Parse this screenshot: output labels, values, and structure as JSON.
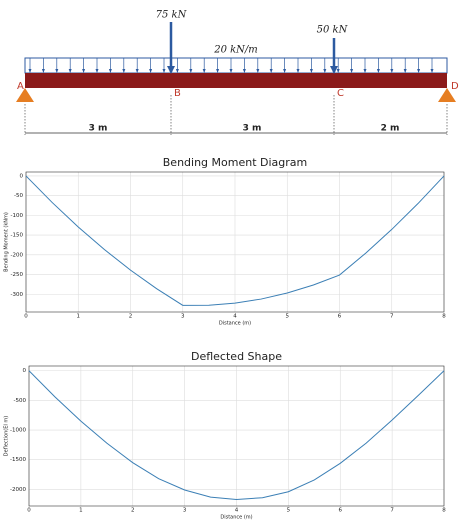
{
  "beam": {
    "loads": [
      "75 kN",
      "50 kN"
    ],
    "distributed_load": "20 kN/m",
    "points": [
      "A",
      "B",
      "C",
      "D"
    ],
    "spans": [
      "3 m",
      "3 m",
      "2 m"
    ]
  },
  "chart_data": [
    {
      "type": "line",
      "title": "Bending Moment Diagram",
      "x_label": "Distance (m)",
      "y_label": "Bending Moment (kNm)",
      "x": [
        0,
        0.5,
        1,
        1.5,
        2,
        2.5,
        3,
        3.5,
        4,
        4.5,
        5,
        5.5,
        6,
        6.5,
        7,
        7.5,
        8
      ],
      "series": [
        {
          "name": "Bending Moment",
          "color": "#3b7fb5",
          "values": [
            0,
            -67.2,
            -129.4,
            -186.6,
            -238.8,
            -285.9,
            -328.1,
            -327.8,
            -322.5,
            -312.2,
            -296.9,
            -276.6,
            -251.3,
            -195.9,
            -135.6,
            -70.3,
            0
          ]
        }
      ],
      "xlim": [
        0,
        8
      ],
      "xticks": [
        0,
        1,
        2,
        3,
        4,
        5,
        6,
        7,
        8
      ],
      "ylim": [
        -345,
        10
      ],
      "yticks": [
        0,
        -50,
        -100,
        -150,
        -200,
        -250,
        -300
      ],
      "grid": true
    },
    {
      "type": "line",
      "title": "Deflected Shape",
      "x_label": "Distance (m)",
      "y_label": "Deflection(EI m)",
      "x": [
        0,
        0.5,
        1,
        1.5,
        2,
        2.5,
        3,
        3.5,
        4,
        4.5,
        5,
        5.5,
        6,
        6.5,
        7,
        7.5,
        8
      ],
      "series": [
        {
          "name": "Deflection",
          "color": "#3b7fb5",
          "values": [
            0,
            -440,
            -850,
            -1220,
            -1550,
            -1820,
            -2010,
            -2130,
            -2170,
            -2140,
            -2040,
            -1840,
            -1560,
            -1220,
            -830,
            -420,
            0
          ]
        }
      ],
      "xlim": [
        0,
        8
      ],
      "xticks": [
        0,
        1,
        2,
        3,
        4,
        5,
        6,
        7,
        8
      ],
      "ylim": [
        -2280,
        80
      ],
      "yticks": [
        0,
        -500,
        -1000,
        -1500,
        -2000
      ],
      "grid": true
    }
  ]
}
